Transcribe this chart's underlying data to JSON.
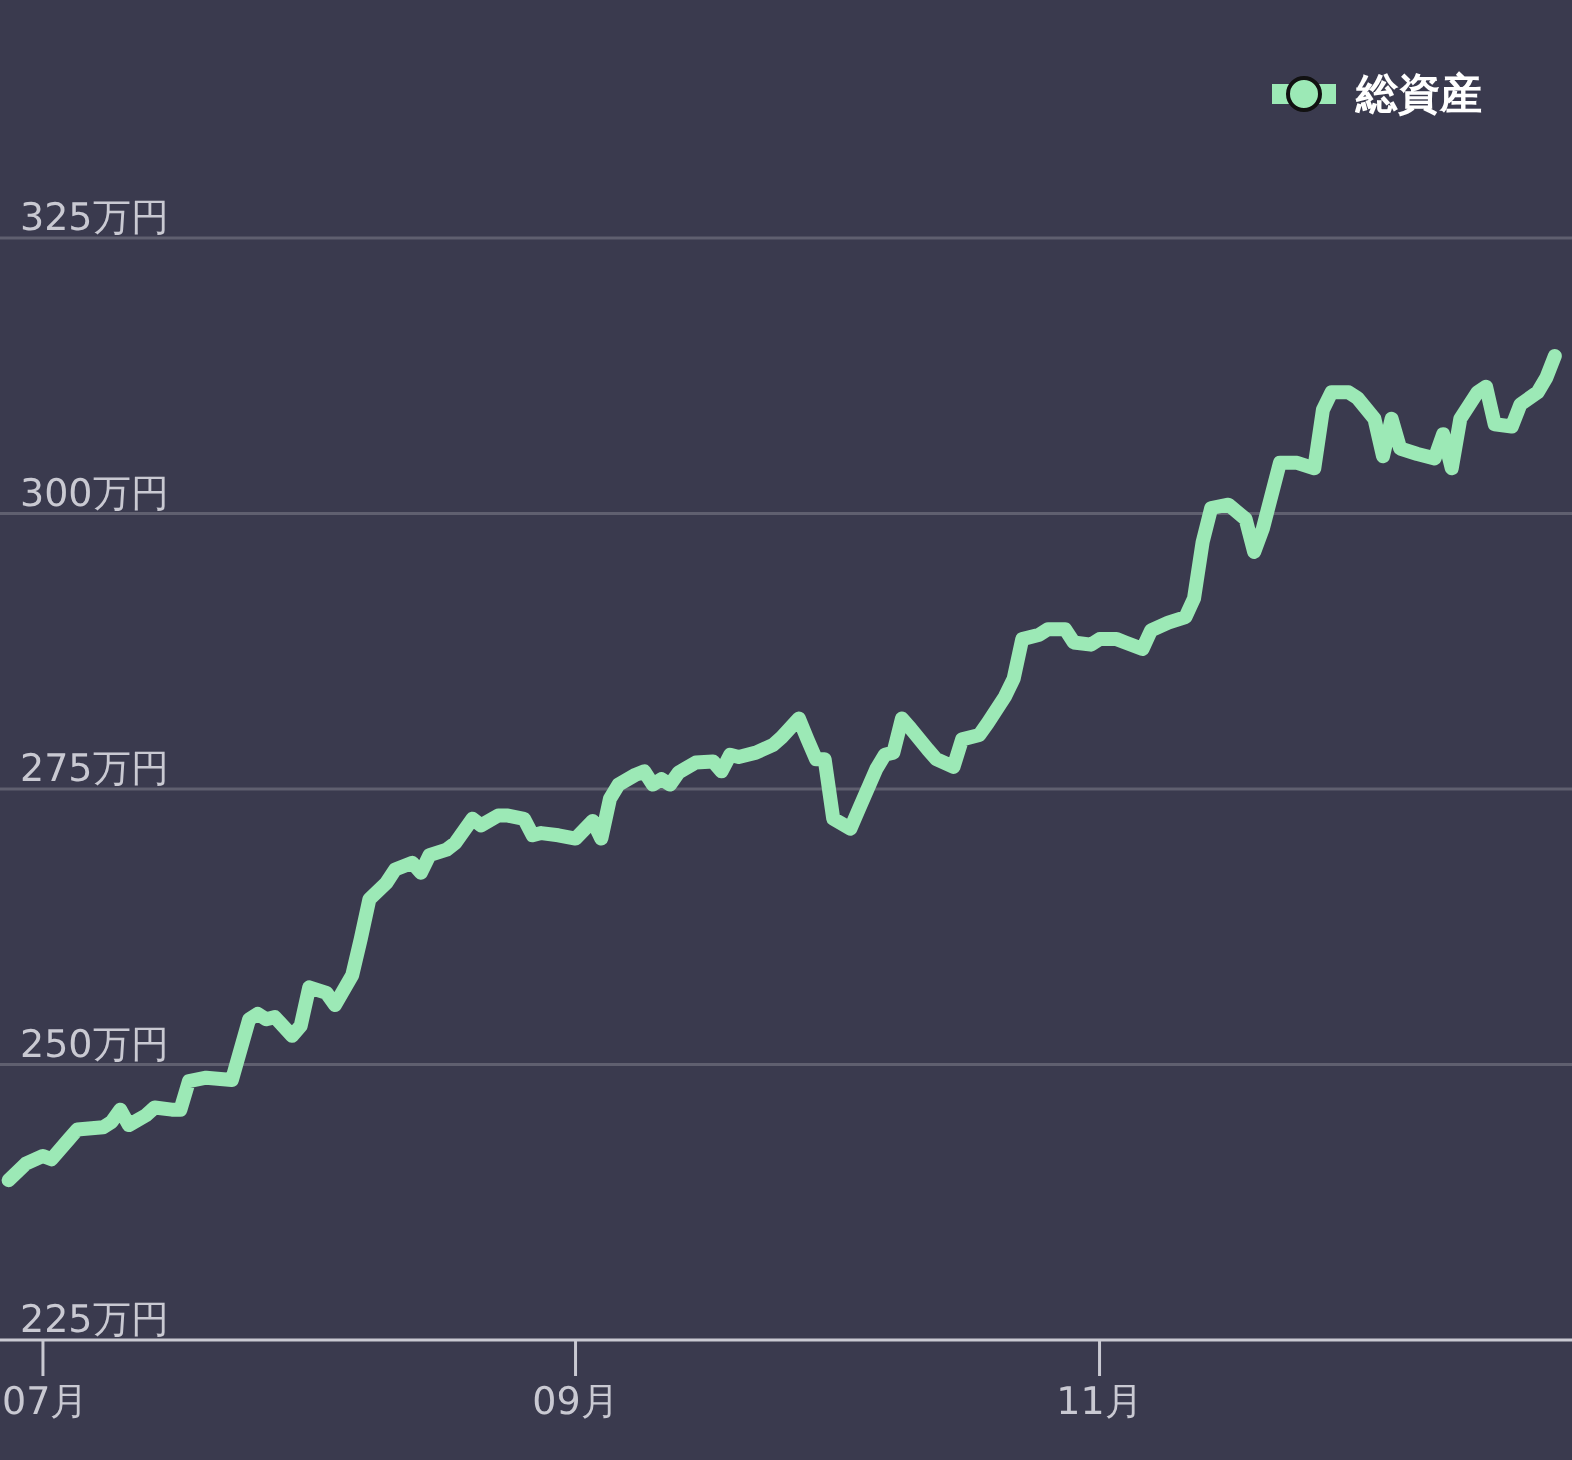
{
  "chart_data": {
    "type": "line",
    "x": [
      "--06-27",
      "--06-29",
      "--07-01",
      "--07-02",
      "--07-04",
      "--07-05",
      "--07-08",
      "--07-09",
      "--07-10",
      "--07-11",
      "--07-13",
      "--07-14",
      "--07-16",
      "--07-17",
      "--07-18",
      "--07-20",
      "--07-23",
      "--07-25",
      "--07-26",
      "--07-27",
      "--07-28",
      "--07-30",
      "--07-31",
      "--08-01",
      "--08-03",
      "--08-04",
      "--08-06",
      "--08-07",
      "--08-08",
      "--08-10",
      "--08-11",
      "--08-13",
      "--08-14",
      "--08-15",
      "--08-17",
      "--08-18",
      "--08-20",
      "--08-21",
      "--08-23",
      "--08-24",
      "--08-26",
      "--08-27",
      "--08-28",
      "--08-30",
      "--09-01",
      "--09-03",
      "--09-04",
      "--09-05",
      "--09-06",
      "--09-08",
      "--09-09",
      "--09-10",
      "--09-11",
      "--09-12",
      "--09-13",
      "--09-15",
      "--09-17",
      "--09-18",
      "--09-19",
      "--09-20",
      "--09-22",
      "--09-24",
      "--09-25",
      "--09-27",
      "--09-28",
      "--09-29",
      "--09-30",
      "--10-01",
      "--10-03",
      "--10-04",
      "--10-06",
      "--10-07",
      "--10-08",
      "--10-09",
      "--10-10",
      "--10-12",
      "--10-13",
      "--10-15",
      "--10-16",
      "--10-18",
      "--10-19",
      "--10-21",
      "--10-22",
      "--10-23",
      "--10-25",
      "--10-26",
      "--10-28",
      "--10-29",
      "--10-31",
      "--11-01",
      "--11-03",
      "--11-04",
      "--11-06",
      "--11-07",
      "--11-09",
      "--11-11",
      "--11-12",
      "--11-13",
      "--11-14",
      "--11-16",
      "--11-18",
      "--11-19",
      "--11-20",
      "--11-22",
      "--11-24",
      "--11-26",
      "--11-27",
      "--11-28",
      "--11-30",
      "--12-01",
      "--12-03",
      "--12-04",
      "--12-05",
      "--12-06",
      "--12-08",
      "--12-10",
      "--12-11",
      "--12-12",
      "--12-13",
      "--12-15",
      "--12-16",
      "--12-17",
      "--12-19",
      "--12-20",
      "--12-22",
      "--12-23",
      "--12-24"
    ],
    "series": [
      {
        "name": "総資産",
        "color": "#9ce9b6",
        "values": [
          239.5,
          241.0,
          241.7,
          241.4,
          243.2,
          244.1,
          244.3,
          244.8,
          245.9,
          244.5,
          245.4,
          246.1,
          245.9,
          245.9,
          248.5,
          248.8,
          248.6,
          254.1,
          254.6,
          254.1,
          254.3,
          252.6,
          253.5,
          257.0,
          256.5,
          255.4,
          258.1,
          261.4,
          265.0,
          266.5,
          267.7,
          268.3,
          267.4,
          269.0,
          269.5,
          270.1,
          272.3,
          271.7,
          272.6,
          272.6,
          272.3,
          270.8,
          271.0,
          270.8,
          270.5,
          272.1,
          270.5,
          274.1,
          275.4,
          276.3,
          276.6,
          275.4,
          275.9,
          275.4,
          276.5,
          277.4,
          277.5,
          276.6,
          278.1,
          277.9,
          278.3,
          279.0,
          279.7,
          281.4,
          279.5,
          277.7,
          277.7,
          272.3,
          271.4,
          273.2,
          276.8,
          278.1,
          278.3,
          281.4,
          280.5,
          278.6,
          277.7,
          277.0,
          279.5,
          279.9,
          281.0,
          283.4,
          285.0,
          288.6,
          289.0,
          289.5,
          289.5,
          288.3,
          288.1,
          288.6,
          288.6,
          288.3,
          287.7,
          289.4,
          290.1,
          290.6,
          292.3,
          297.4,
          300.5,
          300.8,
          299.5,
          296.5,
          298.6,
          304.6,
          304.6,
          304.1,
          309.4,
          311.0,
          311.0,
          310.5,
          308.6,
          305.2,
          308.6,
          305.9,
          305.4,
          305.0,
          307.2,
          304.1,
          308.6,
          311.0,
          311.5,
          308.1,
          307.9,
          309.9,
          311.0,
          312.3,
          314.3
        ]
      }
    ],
    "xlim": [
      "--06-26",
      "--12-26"
    ],
    "xticks": [
      {
        "value": "--07-01",
        "label": "07月"
      },
      {
        "value": "--09-01",
        "label": "09月"
      },
      {
        "value": "--11-01",
        "label": "11月"
      }
    ],
    "ylim": [
      225,
      325
    ],
    "yticks": [
      {
        "value": 225,
        "label": "225万円"
      },
      {
        "value": 250,
        "label": "250万円"
      },
      {
        "value": 275,
        "label": "275万円"
      },
      {
        "value": 300,
        "label": "300万円"
      },
      {
        "value": 325,
        "label": "325万円"
      }
    ],
    "grid": "y",
    "legend": "top right",
    "line_style": "solid"
  }
}
